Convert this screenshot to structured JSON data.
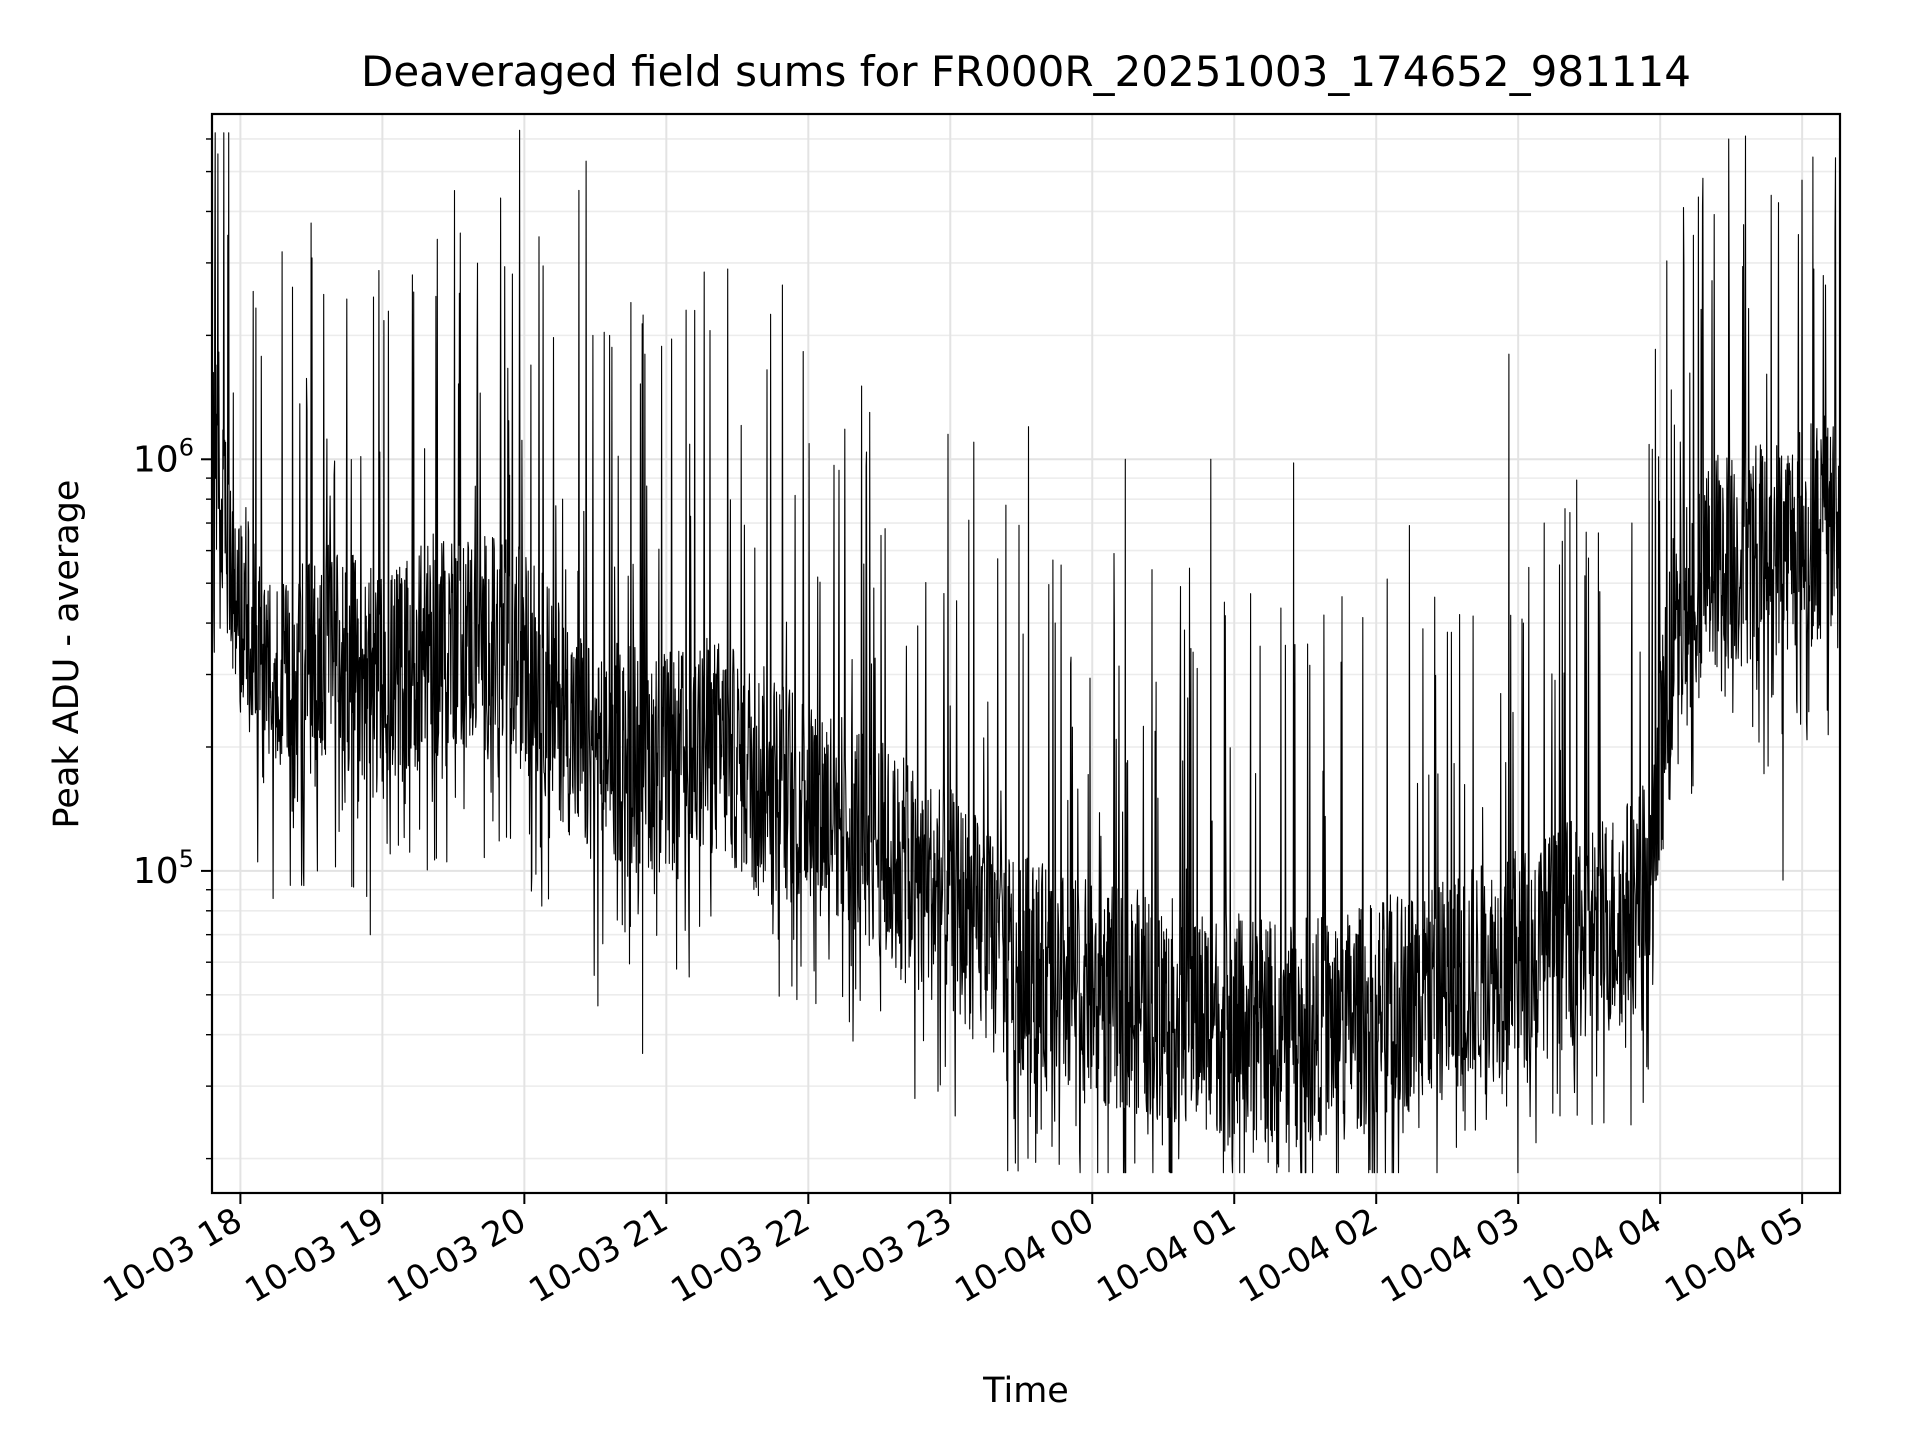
{
  "chart_data": {
    "type": "line",
    "title": "Deaveraged field sums for FR000R_20251003_174652_981114",
    "xlabel": "Time",
    "ylabel": "Peak ADU - average",
    "y_scale": "log",
    "ylim": [
      16500,
      6900000
    ],
    "xlim": [
      "2025-10-03 17:48",
      "2025-10-04 05:16"
    ],
    "grid": true,
    "legend": "none",
    "line_color": "#000000",
    "x_ticks": [
      {
        "value": "2025-10-03 18:00",
        "label": "10-03 18"
      },
      {
        "value": "2025-10-03 19:00",
        "label": "10-03 19"
      },
      {
        "value": "2025-10-03 20:00",
        "label": "10-03 20"
      },
      {
        "value": "2025-10-03 21:00",
        "label": "10-03 21"
      },
      {
        "value": "2025-10-03 22:00",
        "label": "10-03 22"
      },
      {
        "value": "2025-10-03 23:00",
        "label": "10-03 23"
      },
      {
        "value": "2025-10-04 00:00",
        "label": "10-04 00"
      },
      {
        "value": "2025-10-04 01:00",
        "label": "10-04 01"
      },
      {
        "value": "2025-10-04 02:00",
        "label": "10-04 02"
      },
      {
        "value": "2025-10-04 03:00",
        "label": "10-04 03"
      },
      {
        "value": "2025-10-04 04:00",
        "label": "10-04 04"
      },
      {
        "value": "2025-10-04 05:00",
        "label": "10-04 05"
      }
    ],
    "y_ticks": [
      {
        "value": 100000,
        "base": "10",
        "exponent": "5"
      },
      {
        "value": 1000000,
        "base": "10",
        "exponent": "6"
      }
    ],
    "series": [
      {
        "x": [
          "2025-10-03 17:48",
          "2025-10-03 17:51",
          "2025-10-03 17:54",
          "2025-10-03 18:00",
          "2025-10-03 18:10",
          "2025-10-03 18:20",
          "2025-10-03 18:30",
          "2025-10-03 18:40",
          "2025-10-03 18:50",
          "2025-10-03 19:00",
          "2025-10-03 19:15",
          "2025-10-03 19:30",
          "2025-10-03 19:45",
          "2025-10-03 20:00",
          "2025-10-03 20:15",
          "2025-10-03 20:30",
          "2025-10-03 20:45",
          "2025-10-03 21:00",
          "2025-10-03 21:20",
          "2025-10-03 21:40",
          "2025-10-03 22:00",
          "2025-10-03 22:20",
          "2025-10-03 22:40",
          "2025-10-03 23:00",
          "2025-10-03 23:20",
          "2025-10-03 23:40",
          "2025-10-04 00:00",
          "2025-10-04 00:20",
          "2025-10-04 00:40",
          "2025-10-04 01:00",
          "2025-10-04 01:20",
          "2025-10-04 01:40",
          "2025-10-04 02:00",
          "2025-10-04 02:20",
          "2025-10-04 02:40",
          "2025-10-04 03:00",
          "2025-10-04 03:20",
          "2025-10-04 03:40",
          "2025-10-04 03:55",
          "2025-10-04 04:05",
          "2025-10-04 04:20",
          "2025-10-04 04:40",
          "2025-10-04 05:00",
          "2025-10-04 05:16"
        ],
        "y": [
          600000,
          1100000,
          700000,
          450000,
          300000,
          260000,
          320000,
          350000,
          300000,
          280000,
          330000,
          380000,
          350000,
          330000,
          250000,
          180000,
          200000,
          180000,
          200000,
          170000,
          150000,
          130000,
          100000,
          85000,
          65000,
          55000,
          50000,
          48000,
          45000,
          42000,
          40000,
          42000,
          45000,
          50000,
          55000,
          60000,
          70000,
          75000,
          90000,
          350000,
          550000,
          600000,
          650000,
          700000
        ]
      }
    ],
    "peaks": [
      {
        "x": "2025-10-03 17:57",
        "y": 1450000
      },
      {
        "x": "2025-10-03 18:45",
        "y": 2450000
      },
      {
        "x": "2025-10-03 19:40",
        "y": 1850000
      },
      {
        "x": "2025-10-03 19:58",
        "y": 6300000
      },
      {
        "x": "2025-10-03 20:08",
        "y": 2950000
      },
      {
        "x": "2025-10-03 20:23",
        "y": 4500000
      },
      {
        "x": "2025-10-03 20:26",
        "y": 5300000
      },
      {
        "x": "2025-10-03 20:36",
        "y": 2000000
      },
      {
        "x": "2025-10-03 20:51",
        "y": 1800000
      },
      {
        "x": "2025-10-03 21:12",
        "y": 2300000
      },
      {
        "x": "2025-10-03 21:16",
        "y": 2850000
      },
      {
        "x": "2025-10-03 21:26",
        "y": 2900000
      },
      {
        "x": "2025-10-03 21:44",
        "y": 2250000
      },
      {
        "x": "2025-10-03 21:49",
        "y": 2650000
      },
      {
        "x": "2025-10-03 22:26",
        "y": 1300000
      },
      {
        "x": "2025-10-03 22:59",
        "y": 1150000
      },
      {
        "x": "2025-10-03 23:10",
        "y": 1100000
      },
      {
        "x": "2025-10-03 23:33",
        "y": 1200000
      },
      {
        "x": "2025-10-04 00:14",
        "y": 1000000
      },
      {
        "x": "2025-10-04 00:50",
        "y": 1000000
      },
      {
        "x": "2025-10-04 01:25",
        "y": 980000
      },
      {
        "x": "2025-10-04 02:14",
        "y": 690000
      },
      {
        "x": "2025-10-04 02:56",
        "y": 1800000
      },
      {
        "x": "2025-10-04 03:11",
        "y": 700000
      },
      {
        "x": "2025-10-04 03:48",
        "y": 700000
      },
      {
        "x": "2025-10-04 03:58",
        "y": 1850000
      },
      {
        "x": "2025-10-04 04:14",
        "y": 3500000
      },
      {
        "x": "2025-10-04 04:29",
        "y": 6000000
      },
      {
        "x": "2025-10-04 04:36",
        "y": 6100000
      },
      {
        "x": "2025-10-04 04:50",
        "y": 4200000
      },
      {
        "x": "2025-10-04 05:05",
        "y": 2900000
      },
      {
        "x": "2025-10-04 05:14",
        "y": 5400000
      }
    ],
    "troughs": [
      {
        "x": "2025-10-03 18:55",
        "y": 70000
      },
      {
        "x": "2025-10-03 20:31",
        "y": 47000
      },
      {
        "x": "2025-10-03 20:50",
        "y": 36000
      },
      {
        "x": "2025-10-03 22:45",
        "y": 28000
      },
      {
        "x": "2025-10-03 23:27",
        "y": 25000
      },
      {
        "x": "2025-10-04 00:18",
        "y": 19500
      },
      {
        "x": "2025-10-04 01:00",
        "y": 23000
      },
      {
        "x": "2025-10-04 02:00",
        "y": 26000
      },
      {
        "x": "2025-10-04 03:25",
        "y": 25500
      },
      {
        "x": "2025-10-04 03:55",
        "y": 33000
      },
      {
        "x": "2025-10-04 04:52",
        "y": 95000
      }
    ]
  }
}
